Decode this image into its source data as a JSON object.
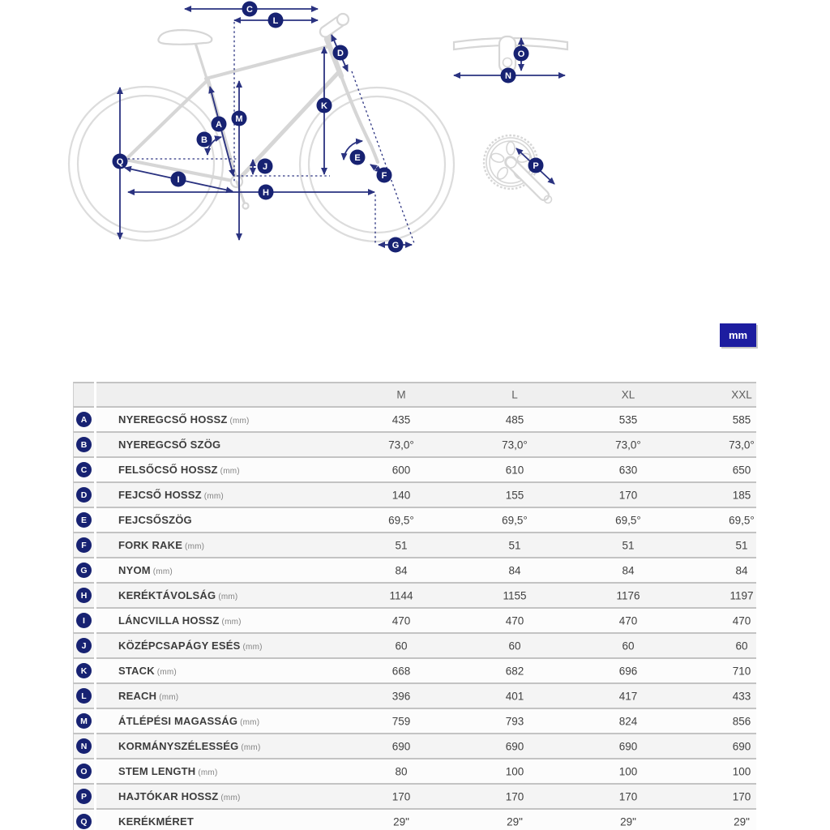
{
  "units_button": {
    "label": "mm"
  },
  "colors": {
    "accent_navy": "#2a3280",
    "badge_navy": "#172272",
    "button_navy": "#1d1da0",
    "bike_gray": "#d6d6d6",
    "row_alt_gray": "#f4f4f4",
    "row_border_gray": "#c3c3c3"
  },
  "diagram": {
    "badges": [
      "A",
      "B",
      "C",
      "D",
      "E",
      "F",
      "G",
      "H",
      "I",
      "J",
      "K",
      "L",
      "M",
      "N",
      "O",
      "P",
      "Q"
    ]
  },
  "table": {
    "size_headers": [
      "M",
      "L",
      "XL",
      "XXL"
    ],
    "rows": [
      {
        "letter": "A",
        "label": "NYEREGCSŐ HOSSZ",
        "unit": "(mm)",
        "values": [
          "435",
          "485",
          "535",
          "585"
        ]
      },
      {
        "letter": "B",
        "label": "NYEREGCSŐ SZÖG",
        "unit": "",
        "values": [
          "73,0°",
          "73,0°",
          "73,0°",
          "73,0°"
        ]
      },
      {
        "letter": "C",
        "label": "FELSŐCSŐ HOSSZ",
        "unit": "(mm)",
        "values": [
          "600",
          "610",
          "630",
          "650"
        ]
      },
      {
        "letter": "D",
        "label": "FEJCSŐ HOSSZ",
        "unit": "(mm)",
        "values": [
          "140",
          "155",
          "170",
          "185"
        ]
      },
      {
        "letter": "E",
        "label": "FEJCSŐSZÖG",
        "unit": "",
        "values": [
          "69,5°",
          "69,5°",
          "69,5°",
          "69,5°"
        ]
      },
      {
        "letter": "F",
        "label": "FORK RAKE",
        "unit": "(mm)",
        "values": [
          "51",
          "51",
          "51",
          "51"
        ]
      },
      {
        "letter": "G",
        "label": "NYOM",
        "unit": "(mm)",
        "values": [
          "84",
          "84",
          "84",
          "84"
        ]
      },
      {
        "letter": "H",
        "label": "KERÉKTÁVOLSÁG",
        "unit": "(mm)",
        "values": [
          "1144",
          "1155",
          "1176",
          "1197"
        ]
      },
      {
        "letter": "I",
        "label": "LÁNCVILLA HOSSZ",
        "unit": "(mm)",
        "values": [
          "470",
          "470",
          "470",
          "470"
        ]
      },
      {
        "letter": "J",
        "label": "KÖZÉPCSAPÁGY ESÉS",
        "unit": "(mm)",
        "values": [
          "60",
          "60",
          "60",
          "60"
        ]
      },
      {
        "letter": "K",
        "label": "STACK",
        "unit": "(mm)",
        "values": [
          "668",
          "682",
          "696",
          "710"
        ]
      },
      {
        "letter": "L",
        "label": "REACH",
        "unit": "(mm)",
        "values": [
          "396",
          "401",
          "417",
          "433"
        ]
      },
      {
        "letter": "M",
        "label": "ÁTLÉPÉSI MAGASSÁG",
        "unit": "(mm)",
        "values": [
          "759",
          "793",
          "824",
          "856"
        ]
      },
      {
        "letter": "N",
        "label": "KORMÁNYSZÉLESSÉG",
        "unit": "(mm)",
        "values": [
          "690",
          "690",
          "690",
          "690"
        ]
      },
      {
        "letter": "O",
        "label": "STEM LENGTH",
        "unit": "(mm)",
        "values": [
          "80",
          "100",
          "100",
          "100"
        ]
      },
      {
        "letter": "P",
        "label": "HAJTÓKAR HOSSZ",
        "unit": "(mm)",
        "values": [
          "170",
          "170",
          "170",
          "170"
        ]
      },
      {
        "letter": "Q",
        "label": "KERÉKMÉRET",
        "unit": "",
        "values": [
          "29\"",
          "29\"",
          "29\"",
          "29\""
        ]
      }
    ]
  }
}
